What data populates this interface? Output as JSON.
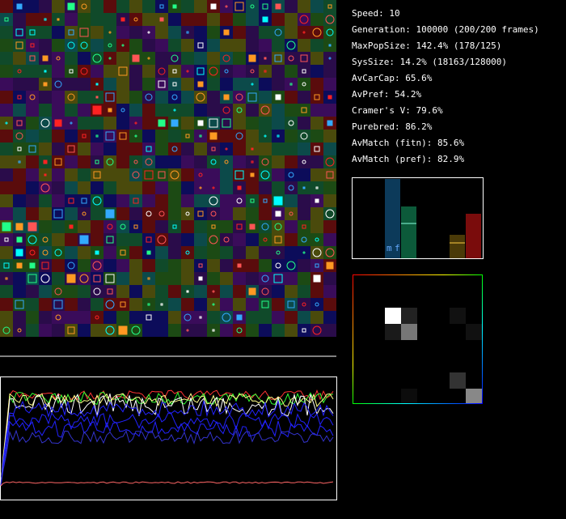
{
  "stats": [
    "Speed: 10",
    "Generation: 100000 (200/200 frames)",
    "MaxPopSize: 142.4% (178/125)",
    "SysSize: 14.2% (18163/128000)",
    "AvCarCap: 65.6%",
    "AvPref: 54.2%",
    "Cramer's V: 79.6%",
    "Purebred: 86.2%",
    "AvMatch (fitn): 85.6%",
    "AvMatch (pref): 82.9%"
  ],
  "histogram": {
    "labels": [
      "m",
      "f"
    ]
  }
}
